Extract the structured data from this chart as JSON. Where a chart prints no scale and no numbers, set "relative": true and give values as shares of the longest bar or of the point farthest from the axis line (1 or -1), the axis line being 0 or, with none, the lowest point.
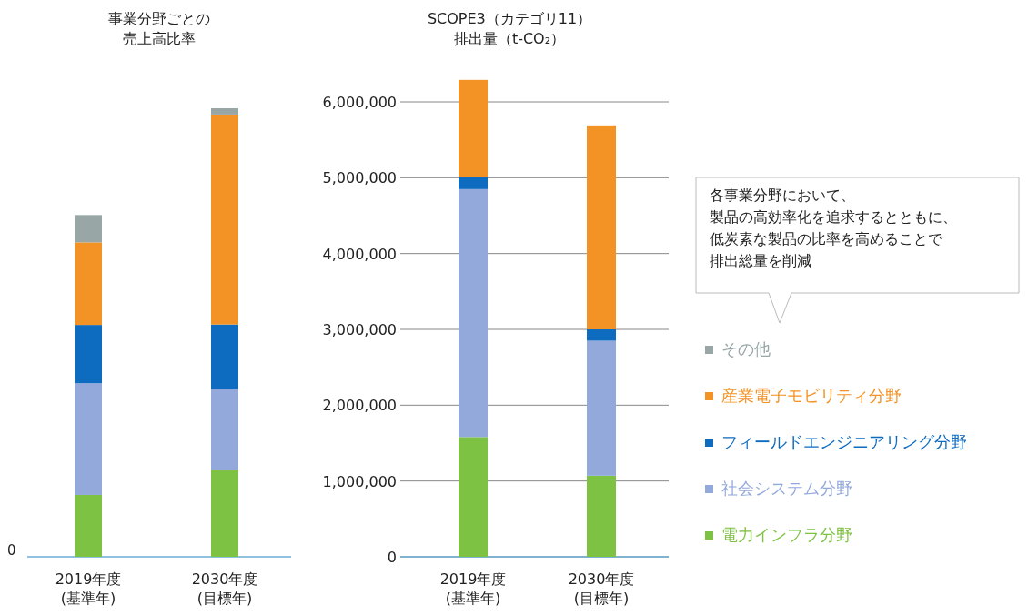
{
  "chart_data": [
    {
      "type": "bar",
      "title": "事業分野ごとの",
      "subtitle": "売上高比率",
      "categories": [
        "2019年度\n(基準年)",
        "2030年度\n(目標年)"
      ],
      "stacked": true,
      "relative": true,
      "annotations": [
        "0"
      ],
      "series": [
        {
          "color": "#7dc242",
          "values": [
            0.138,
            0.194
          ]
        },
        {
          "color": "#93a9dc",
          "values": [
            0.249,
            0.18
          ]
        },
        {
          "color": "#0d6bc0",
          "values": [
            0.13,
            0.144
          ]
        },
        {
          "color": "#f39325",
          "values": [
            0.184,
            0.468
          ]
        },
        {
          "color": "#98a6a6",
          "values": [
            0.061,
            0.014
          ]
        }
      ]
    },
    {
      "type": "bar",
      "title": "SCOPE3（カテゴリ11）",
      "subtitle": "排出量（t-CO₂）",
      "categories": [
        "2019年度\n(基準年)",
        "2030年度\n(目標年)"
      ],
      "stacked": true,
      "ylim": [
        0,
        6300000
      ],
      "yticks": [
        {
          "value": 0,
          "label": "0"
        },
        {
          "value": 1000000,
          "label": "1,000,000"
        },
        {
          "value": 2000000,
          "label": "2,000,000"
        },
        {
          "value": 3000000,
          "label": "3,000,000"
        },
        {
          "value": 4000000,
          "label": "4,000,000"
        },
        {
          "value": 5000000,
          "label": "5,000,000"
        },
        {
          "value": 6000000,
          "label": "6,000,000"
        }
      ],
      "grid": "y",
      "legend": "right",
      "annotations": [
        "各事業分野において、",
        "製品の高効率化を追求するとともに、",
        "低炭素な製品の比率を高めることで",
        "排出総量を削減"
      ],
      "series": [
        {
          "name": "電力インフラ分野",
          "color": "#7dc242",
          "values": [
            1580000,
            1070000
          ]
        },
        {
          "name": "社会システム分野",
          "color": "#93a9dc",
          "values": [
            3270000,
            1780000
          ]
        },
        {
          "name": "フィールドエンジニアリング分野",
          "color": "#0d6bc0",
          "values": [
            160000,
            150000
          ]
        },
        {
          "name": "産業電子モビリティ分野",
          "color": "#f39325",
          "values": [
            1280000,
            2690000
          ]
        },
        {
          "name": "その他",
          "color": "#98a6a6",
          "values": [
            0,
            0
          ]
        }
      ]
    }
  ]
}
